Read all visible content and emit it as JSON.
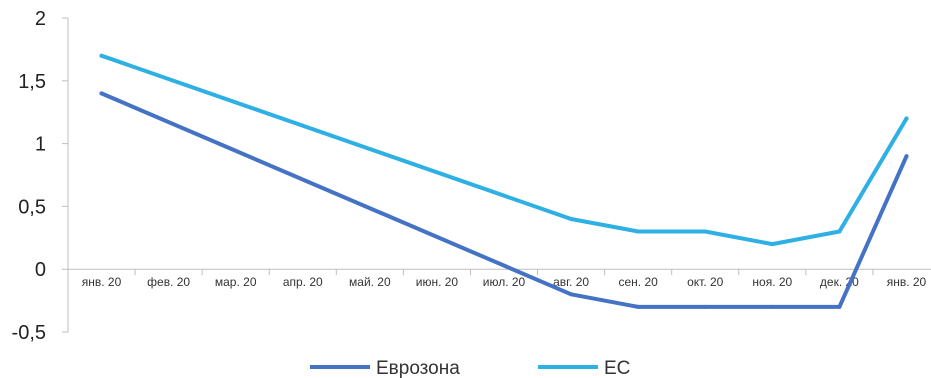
{
  "chart_data": {
    "type": "line",
    "categories": [
      "янв. 20",
      "фев. 20",
      "мар. 20",
      "апр. 20",
      "май. 20",
      "июн. 20",
      "июл. 20",
      "авг. 20",
      "сен. 20",
      "окт. 20",
      "ноя. 20",
      "дек. 20",
      "янв. 20"
    ],
    "series": [
      {
        "name": "Еврозона",
        "color": "#4472c4",
        "values": [
          1.4,
          null,
          null,
          null,
          null,
          null,
          null,
          -0.2,
          -0.3,
          -0.3,
          -0.3,
          -0.3,
          0.9
        ]
      },
      {
        "name": "ЕС",
        "color": "#2eb0e4",
        "values": [
          1.7,
          null,
          null,
          null,
          null,
          null,
          null,
          0.4,
          0.3,
          0.3,
          0.2,
          0.3,
          1.2
        ]
      }
    ],
    "ylim": [
      -0.5,
      2
    ],
    "yticks": [
      "2",
      "1,5",
      "1",
      "0,5",
      "0",
      "-0,5"
    ],
    "ytick_values": [
      2,
      1.5,
      1,
      0.5,
      0,
      -0.5
    ],
    "legend_position": "bottom",
    "grid": false
  }
}
